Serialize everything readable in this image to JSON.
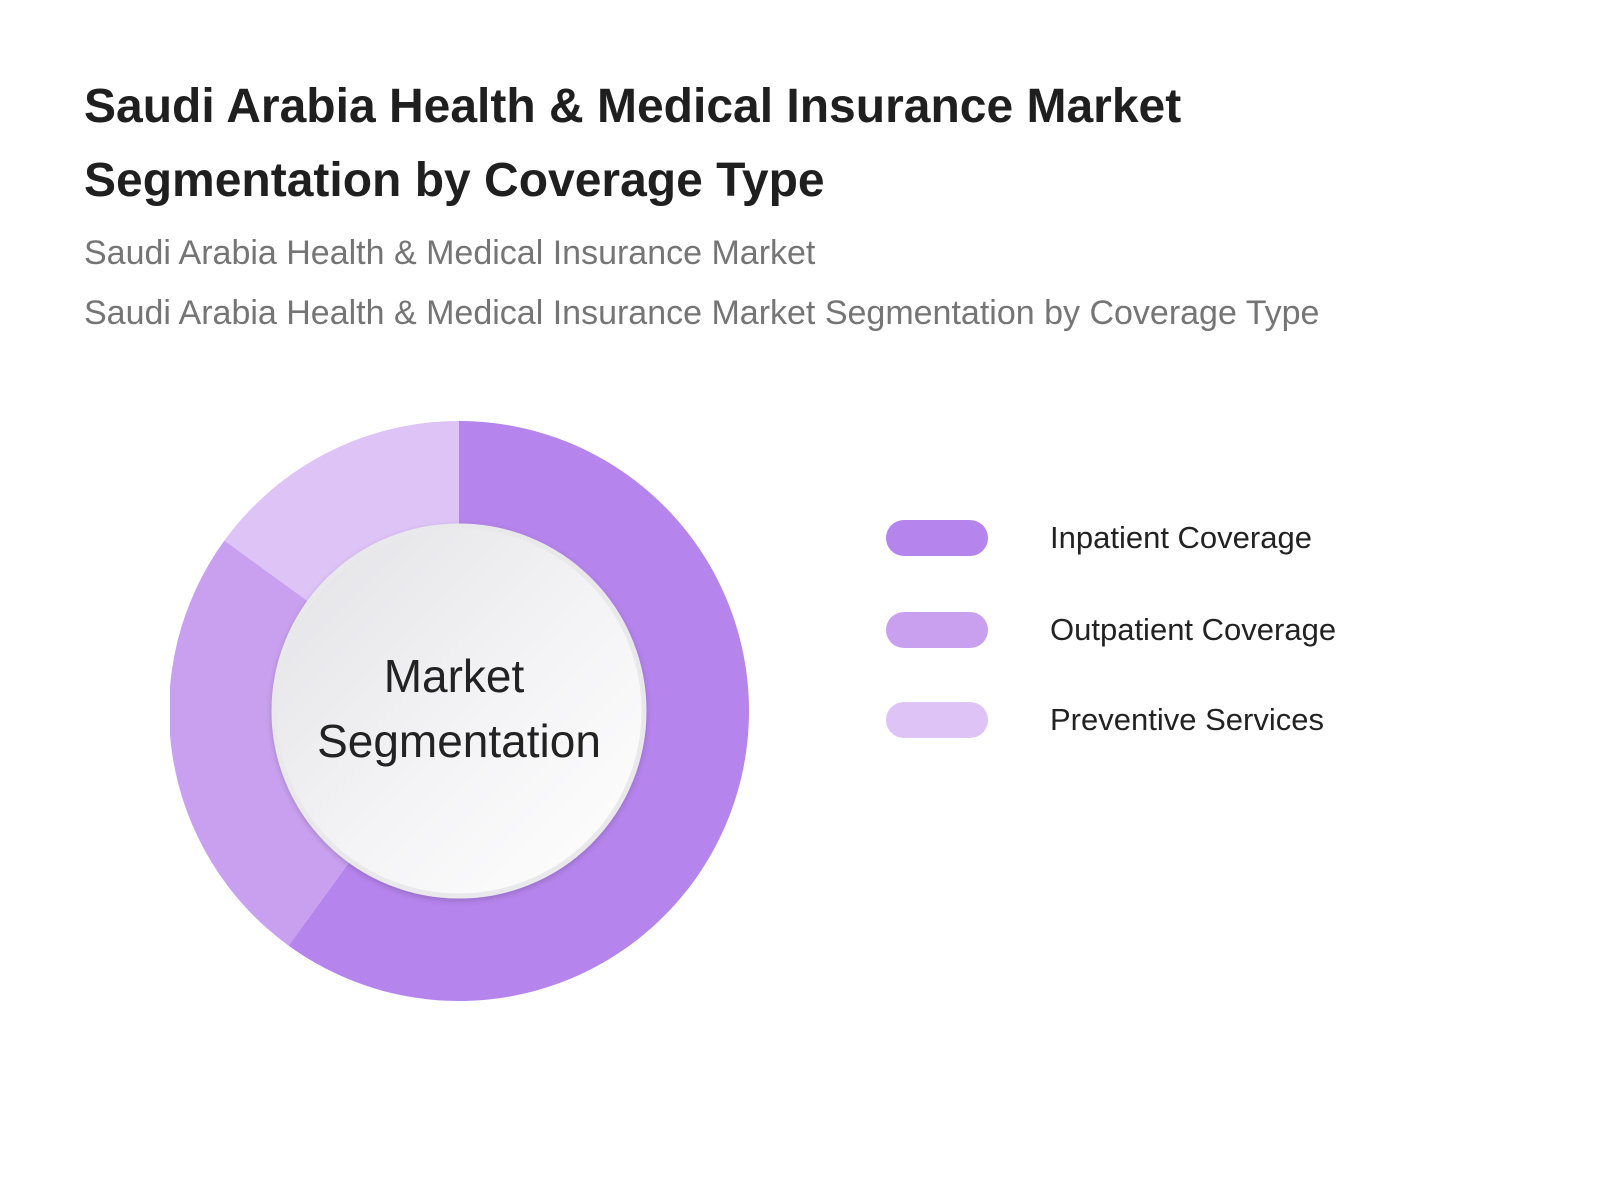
{
  "chart_data": {
    "type": "pie",
    "title": "Saudi Arabia Health & Medical Insurance Market Segmentation by Coverage Type",
    "subtitle": "Saudi Arabia Health & Medical Insurance Market",
    "subtitle2": "Saudi Arabia Health & Medical Insurance Market  Segmentation by Coverage Type",
    "center_label": [
      "Market",
      "Segmentation"
    ],
    "legend_position": "right",
    "slices": [
      {
        "name": "Inpatient Coverage",
        "value": 60,
        "color": "#b584ec"
      },
      {
        "name": "Outpatient Coverage",
        "value": 25,
        "color": "#c8a0ef"
      },
      {
        "name": "Preventive Services",
        "value": 15,
        "color": "#dec3f7"
      }
    ]
  }
}
